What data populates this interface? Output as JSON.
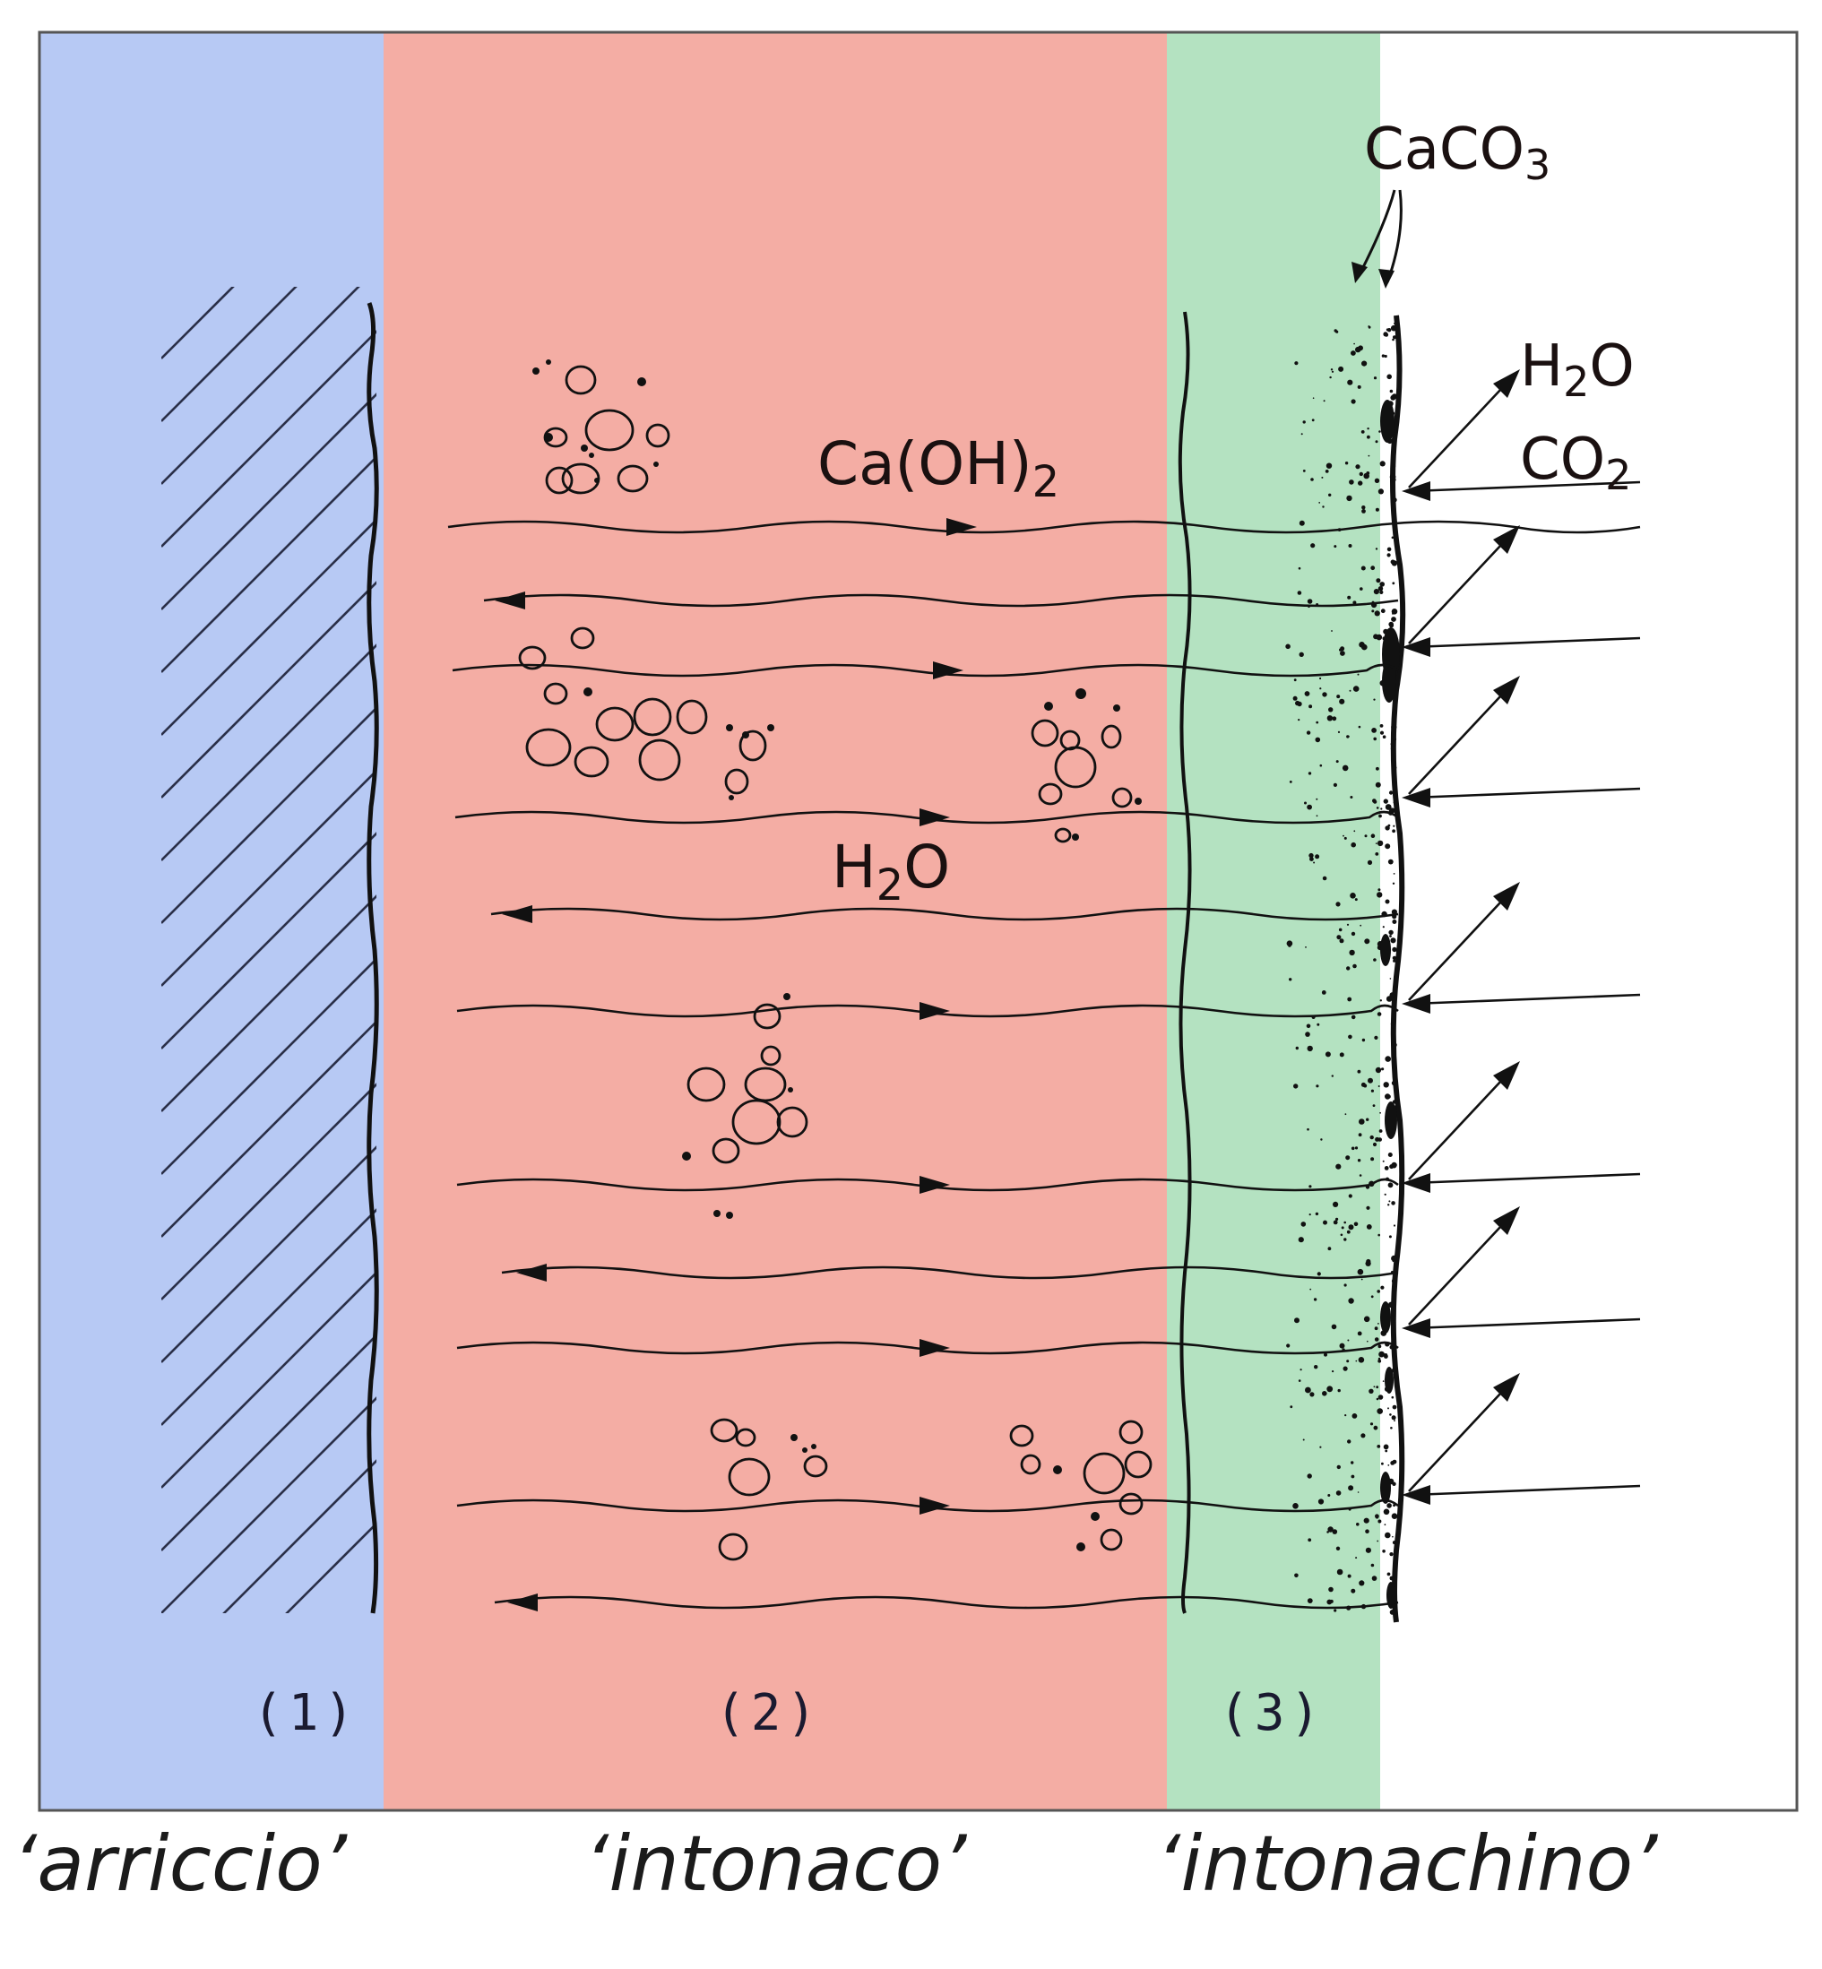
{
  "colors": {
    "arriccio_bg": "#b7c9f4",
    "intonaco_bg": "#f4ada4",
    "intonachino_bg": "#b4e2c1",
    "ink": "#141010",
    "frame": "#555555"
  },
  "formulas": {
    "caco3": {
      "main": "CaCO",
      "sub": "3"
    },
    "h2o_top": {
      "main1": "H",
      "sub": "2",
      "main2": "O"
    },
    "co2": {
      "main": "CO",
      "sub": "2"
    },
    "caoh2": {
      "main": "Ca(OH)",
      "sub": "2"
    },
    "h2o_mid": {
      "main1": "H",
      "sub": "2",
      "main2": "O"
    }
  },
  "layers": [
    {
      "number": "(1)",
      "caption": "‘arriccio’"
    },
    {
      "number": "(2)",
      "caption": "‘intonaco’"
    },
    {
      "number": "(3)",
      "caption": "‘intonachino’"
    }
  ],
  "icons": {
    "arrow": "arrow-head",
    "aggregate": "aggregate-pebbles",
    "hatch": "wall-hatching"
  }
}
